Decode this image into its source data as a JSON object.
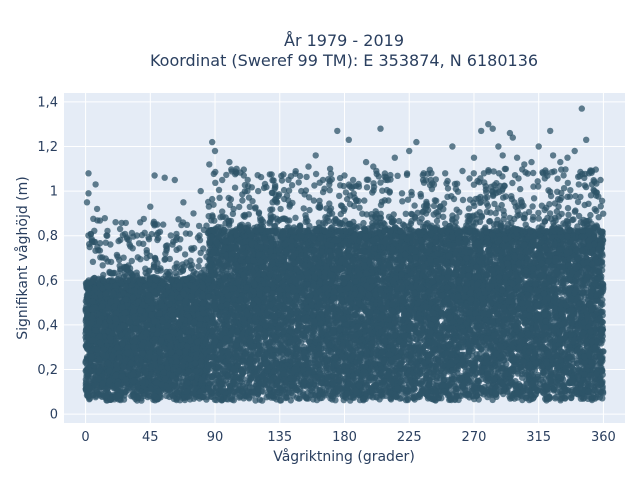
{
  "chart_data": {
    "type": "scatter",
    "title_lines": [
      "År 1979 - 2019",
      "Koordinat (Sweref 99 TM): E 353874, N 6180136"
    ],
    "xlabel": "Vågriktning (grader)",
    "ylabel": "Signifikant våghöjd (m)",
    "xlim": [
      -15,
      375
    ],
    "ylim": [
      -0.04,
      1.44
    ],
    "x_ticks": [
      0,
      45,
      90,
      135,
      180,
      225,
      270,
      315,
      360
    ],
    "x_tick_labels": [
      "0",
      "45",
      "90",
      "135",
      "180",
      "225",
      "270",
      "315",
      "360"
    ],
    "y_ticks": [
      0,
      0.2,
      0.4,
      0.6,
      0.8,
      1,
      1.2,
      1.4
    ],
    "y_tick_labels": [
      "0",
      "0,2",
      "0,4",
      "0,6",
      "0,8",
      "1",
      "1,2",
      "1,4"
    ],
    "grid": true,
    "marker_color": "#2e5468",
    "plot_background": "#e5ecf6",
    "series": [
      {
        "dense_band": [
          {
            "x_range": [
              0,
              85
            ],
            "y_range": [
              0.06,
              0.6
            ]
          },
          {
            "x_range": [
              85,
              360
            ],
            "y_range": [
              0.06,
              0.82
            ]
          }
        ],
        "points": [
          {
            "x": 2,
            "y": 1.08
          },
          {
            "x": 2,
            "y": 0.99
          },
          {
            "x": 7,
            "y": 1.03
          },
          {
            "x": 1,
            "y": 0.95
          },
          {
            "x": 8,
            "y": 0.92
          },
          {
            "x": 15,
            "y": 0.8
          },
          {
            "x": 24,
            "y": 0.83
          },
          {
            "x": 30,
            "y": 0.78
          },
          {
            "x": 38,
            "y": 0.86
          },
          {
            "x": 45,
            "y": 0.93
          },
          {
            "x": 48,
            "y": 1.07
          },
          {
            "x": 55,
            "y": 1.06
          },
          {
            "x": 62,
            "y": 1.05
          },
          {
            "x": 68,
            "y": 0.95
          },
          {
            "x": 75,
            "y": 0.9
          },
          {
            "x": 80,
            "y": 1.0
          },
          {
            "x": 86,
            "y": 1.12
          },
          {
            "x": 88,
            "y": 1.22
          },
          {
            "x": 90,
            "y": 1.18
          },
          {
            "x": 95,
            "y": 1.05
          },
          {
            "x": 100,
            "y": 1.13
          },
          {
            "x": 105,
            "y": 1.1
          },
          {
            "x": 110,
            "y": 1.07
          },
          {
            "x": 120,
            "y": 1.0
          },
          {
            "x": 130,
            "y": 0.95
          },
          {
            "x": 140,
            "y": 0.98
          },
          {
            "x": 150,
            "y": 1.0
          },
          {
            "x": 155,
            "y": 1.11
          },
          {
            "x": 160,
            "y": 1.16
          },
          {
            "x": 165,
            "y": 1.05
          },
          {
            "x": 170,
            "y": 1.1
          },
          {
            "x": 175,
            "y": 1.27
          },
          {
            "x": 180,
            "y": 1.07
          },
          {
            "x": 183,
            "y": 1.23
          },
          {
            "x": 190,
            "y": 1.02
          },
          {
            "x": 195,
            "y": 1.13
          },
          {
            "x": 200,
            "y": 1.11
          },
          {
            "x": 205,
            "y": 1.28
          },
          {
            "x": 210,
            "y": 1.05
          },
          {
            "x": 215,
            "y": 1.15
          },
          {
            "x": 220,
            "y": 0.99
          },
          {
            "x": 225,
            "y": 1.18
          },
          {
            "x": 230,
            "y": 1.22
          },
          {
            "x": 240,
            "y": 1.05
          },
          {
            "x": 250,
            "y": 1.08
          },
          {
            "x": 255,
            "y": 1.2
          },
          {
            "x": 262,
            "y": 1.09
          },
          {
            "x": 270,
            "y": 1.15
          },
          {
            "x": 275,
            "y": 1.27
          },
          {
            "x": 280,
            "y": 1.3
          },
          {
            "x": 283,
            "y": 1.28
          },
          {
            "x": 287,
            "y": 1.2
          },
          {
            "x": 290,
            "y": 1.16
          },
          {
            "x": 295,
            "y": 1.26
          },
          {
            "x": 297,
            "y": 1.24
          },
          {
            "x": 300,
            "y": 1.15
          },
          {
            "x": 305,
            "y": 1.12
          },
          {
            "x": 310,
            "y": 1.13
          },
          {
            "x": 315,
            "y": 1.2
          },
          {
            "x": 318,
            "y": 1.08
          },
          {
            "x": 323,
            "y": 1.27
          },
          {
            "x": 325,
            "y": 1.16
          },
          {
            "x": 330,
            "y": 1.13
          },
          {
            "x": 335,
            "y": 1.15
          },
          {
            "x": 340,
            "y": 1.18
          },
          {
            "x": 345,
            "y": 1.37
          },
          {
            "x": 348,
            "y": 1.23
          },
          {
            "x": 350,
            "y": 1.08
          },
          {
            "x": 352,
            "y": 1.03
          },
          {
            "x": 355,
            "y": 0.98
          },
          {
            "x": 358,
            "y": 1.05
          }
        ]
      }
    ]
  }
}
